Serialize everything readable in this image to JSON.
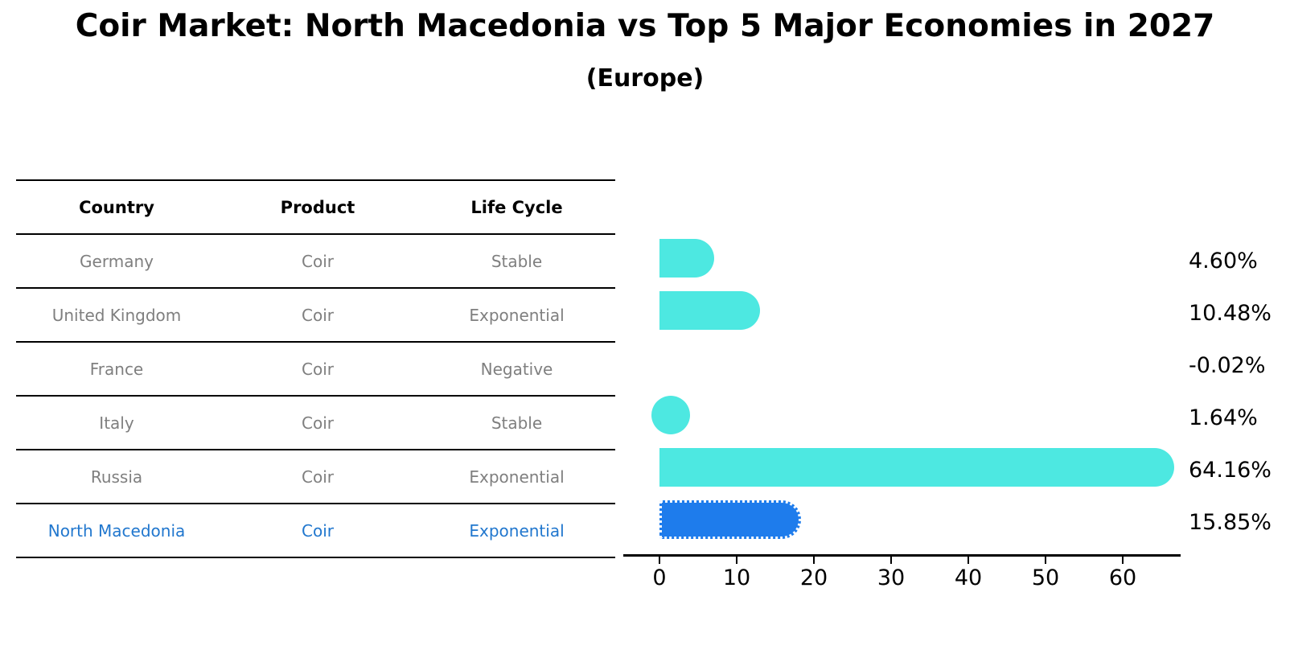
{
  "title": "Coir Market: North Macedonia vs Top 5 Major Economies in 2027",
  "subtitle": "(Europe)",
  "table": {
    "headers": [
      "Country",
      "Product",
      "Life Cycle"
    ],
    "rows": [
      {
        "country": "Germany",
        "product": "Coir",
        "life_cycle": "Stable",
        "highlight": false
      },
      {
        "country": "United Kingdom",
        "product": "Coir",
        "life_cycle": "Exponential",
        "highlight": false
      },
      {
        "country": "France",
        "product": "Coir",
        "life_cycle": "Negative",
        "highlight": false
      },
      {
        "country": "Italy",
        "product": "Coir",
        "life_cycle": "Stable",
        "highlight": false
      },
      {
        "country": "Russia",
        "product": "Coir",
        "life_cycle": "Exponential",
        "highlight": false
      },
      {
        "country": "North Macedonia",
        "product": "Coir",
        "life_cycle": "Exponential",
        "highlight": true
      }
    ]
  },
  "chart_data": {
    "type": "bar",
    "orientation": "horizontal",
    "title": "Coir Market: North Macedonia vs Top 5 Major Economies in 2027",
    "subtitle": "(Europe)",
    "categories": [
      "Germany",
      "United Kingdom",
      "France",
      "Italy",
      "Russia",
      "North Macedonia"
    ],
    "values": [
      4.6,
      10.48,
      -0.02,
      1.64,
      64.16,
      15.85
    ],
    "value_labels": [
      "4.60%",
      "10.48%",
      "-0.02%",
      "1.64%",
      "64.16%",
      "15.85%"
    ],
    "highlight_index": 5,
    "xticks": [
      0,
      10,
      20,
      30,
      40,
      50,
      60
    ],
    "xlim": [
      -3,
      67
    ],
    "grid": false,
    "legend": false,
    "bar_color": "#4DE8E1",
    "highlight_bar_color": "#1E7CEC",
    "highlight_text_color": "#2177CE"
  },
  "colors": {
    "bar": "#4DE8E1",
    "highlight_bar": "#1E7CEC",
    "highlight_text": "#2177CE",
    "table_text": "#7f7f7f",
    "axis": "#000000"
  }
}
